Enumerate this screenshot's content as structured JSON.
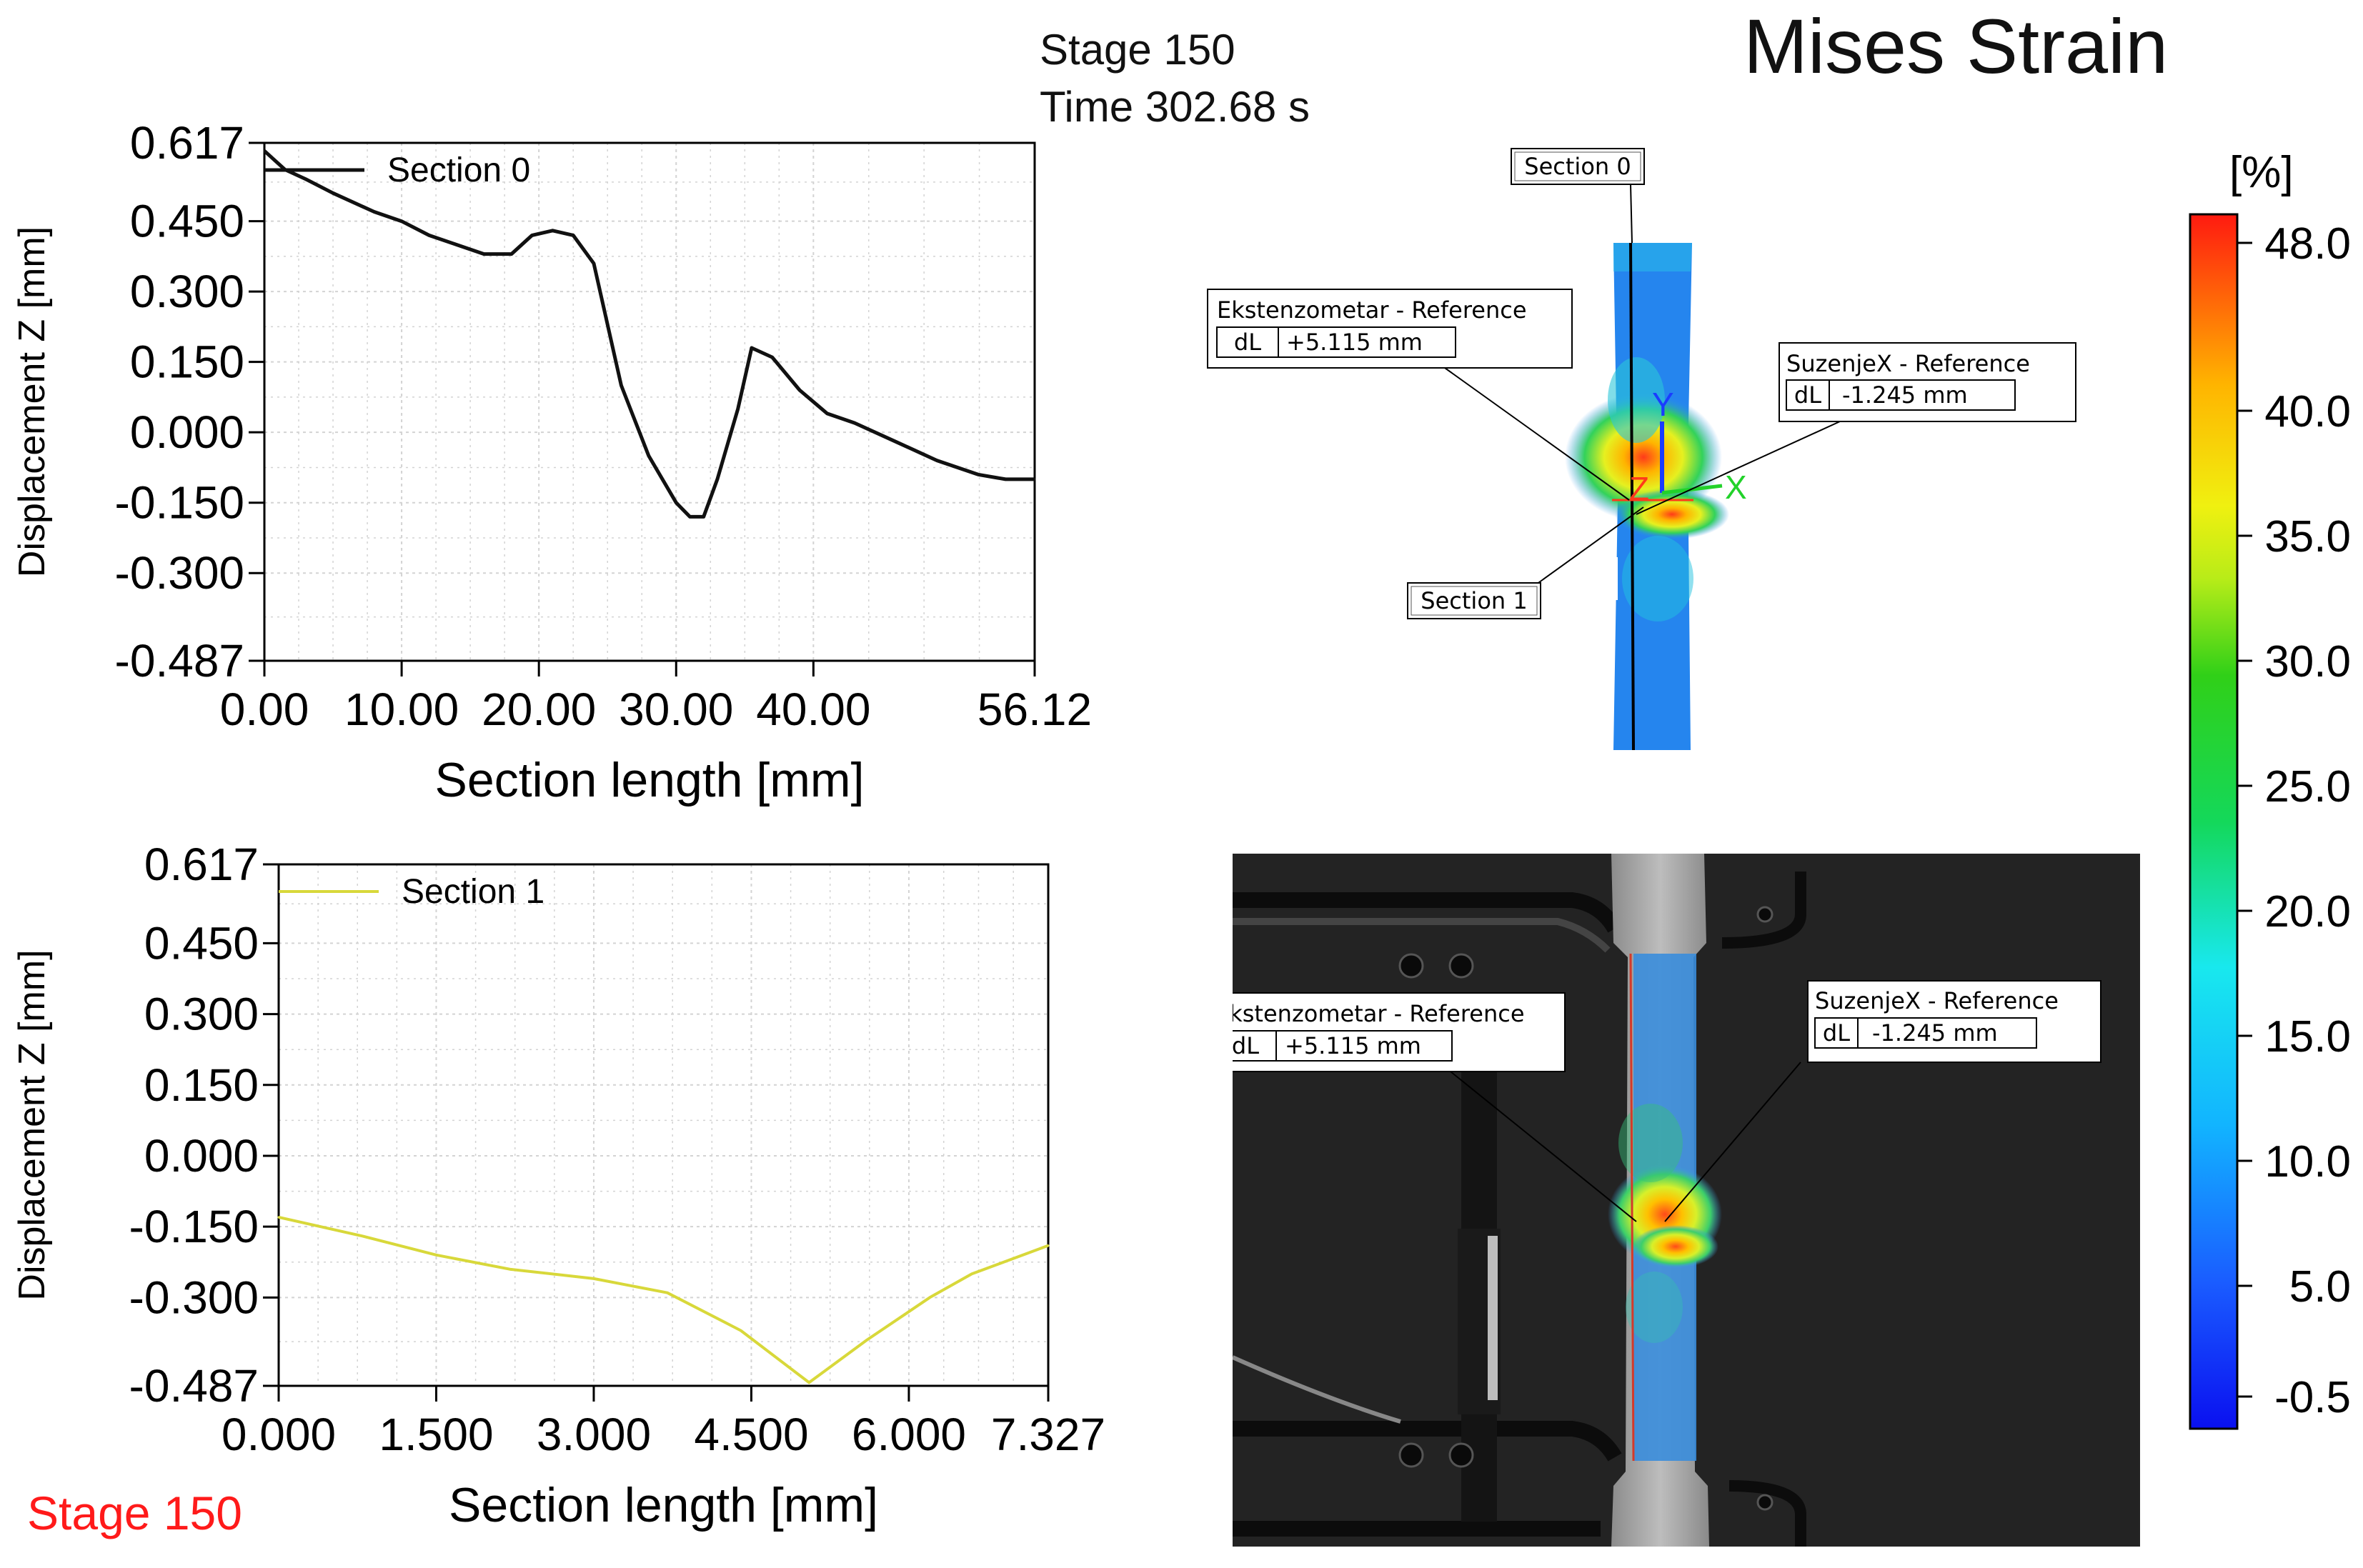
{
  "header": {
    "stage": "Stage 150",
    "time": "Time  302.68 s",
    "title": "Mises Strain",
    "stage_label_red": "Stage 150"
  },
  "colors": {
    "section0": "#111111",
    "section1": "#d8d83a",
    "stage_label": "#ff1a1a",
    "plot_border": "#000000",
    "grid": "#d3d3d3"
  },
  "chart_data": [
    {
      "type": "line",
      "xlabel": "Section length [mm]",
      "ylabel": "Displacement Z [mm]",
      "xlim": [
        0,
        56.12
      ],
      "ylim": [
        -0.487,
        0.617
      ],
      "x_ticks": [
        0,
        10,
        20,
        30,
        40,
        56.12
      ],
      "x_tick_labels": [
        "0.00",
        "10.00",
        "20.00",
        "30.00",
        "40.00",
        "56.12"
      ],
      "y_ticks": [
        0.617,
        0.45,
        0.3,
        0.15,
        0.0,
        -0.15,
        -0.3,
        -0.487
      ],
      "y_tick_labels": [
        "0.617",
        "0.450",
        "0.300",
        "0.150",
        "0.000",
        "-0.150",
        "-0.300",
        "-0.487"
      ],
      "grid": true,
      "legend": "top-left",
      "series": [
        {
          "name": "Section 0",
          "color": "#111111",
          "x": [
            0,
            1.5,
            3,
            5,
            8,
            10,
            12,
            14,
            16,
            18,
            19.5,
            21,
            22.5,
            24,
            26,
            28,
            30,
            31,
            32,
            33,
            34.5,
            35.5,
            37,
            39,
            41,
            43,
            46,
            49,
            52,
            54,
            56.12
          ],
          "y": [
            0.6,
            0.56,
            0.54,
            0.51,
            0.47,
            0.45,
            0.42,
            0.4,
            0.38,
            0.38,
            0.42,
            0.43,
            0.42,
            0.36,
            0.1,
            -0.05,
            -0.15,
            -0.18,
            -0.18,
            -0.1,
            0.05,
            0.18,
            0.16,
            0.09,
            0.04,
            0.02,
            -0.02,
            -0.06,
            -0.09,
            -0.1,
            -0.1
          ]
        }
      ]
    },
    {
      "type": "line",
      "xlabel": "Section length [mm]",
      "ylabel": "Displacement Z [mm]",
      "xlim": [
        0,
        7.327
      ],
      "ylim": [
        -0.487,
        0.617
      ],
      "x_ticks": [
        0,
        1.5,
        3,
        4.5,
        6,
        7.327
      ],
      "x_tick_labels": [
        "0.000",
        "1.500",
        "3.000",
        "4.500",
        "6.000",
        "7.327"
      ],
      "y_ticks": [
        0.617,
        0.45,
        0.3,
        0.15,
        0.0,
        -0.15,
        -0.3,
        -0.487
      ],
      "y_tick_labels": [
        "0.617",
        "0.450",
        "0.300",
        "0.150",
        "0.000",
        "-0.150",
        "-0.300",
        "-0.487"
      ],
      "grid": true,
      "legend": "top-left",
      "series": [
        {
          "name": "Section 1",
          "color": "#d8d83a",
          "x": [
            0,
            0.8,
            1.5,
            2.2,
            3.0,
            3.7,
            4.4,
            5.05,
            5.6,
            6.2,
            6.6,
            7.327
          ],
          "y": [
            -0.13,
            -0.17,
            -0.21,
            -0.24,
            -0.26,
            -0.29,
            -0.37,
            -0.48,
            -0.39,
            -0.3,
            -0.25,
            -0.19
          ]
        }
      ]
    },
    {
      "type": "heatmap",
      "title": "Mises Strain",
      "colorbar_unit": "[%]",
      "colorbar_ticks": [
        "48.0",
        "40.0",
        "35.0",
        "30.0",
        "25.0",
        "20.0",
        "15.0",
        "10.0",
        "5.0",
        "-0.5"
      ],
      "colorbar_range": [
        -0.5,
        48.0
      ]
    }
  ],
  "annotations": {
    "section0_label": "Section 0",
    "section1_label": "Section 1",
    "ext_title": "Ekstenzometar - Reference",
    "ext_key": "dL",
    "ext_value": "+5.115 mm",
    "suz_title": "SuzenjeX - Reference",
    "suz_key": "dL",
    "suz_value": "-1.245 mm",
    "axis_y": "Y",
    "axis_x": "X",
    "axis_z": "Z"
  }
}
